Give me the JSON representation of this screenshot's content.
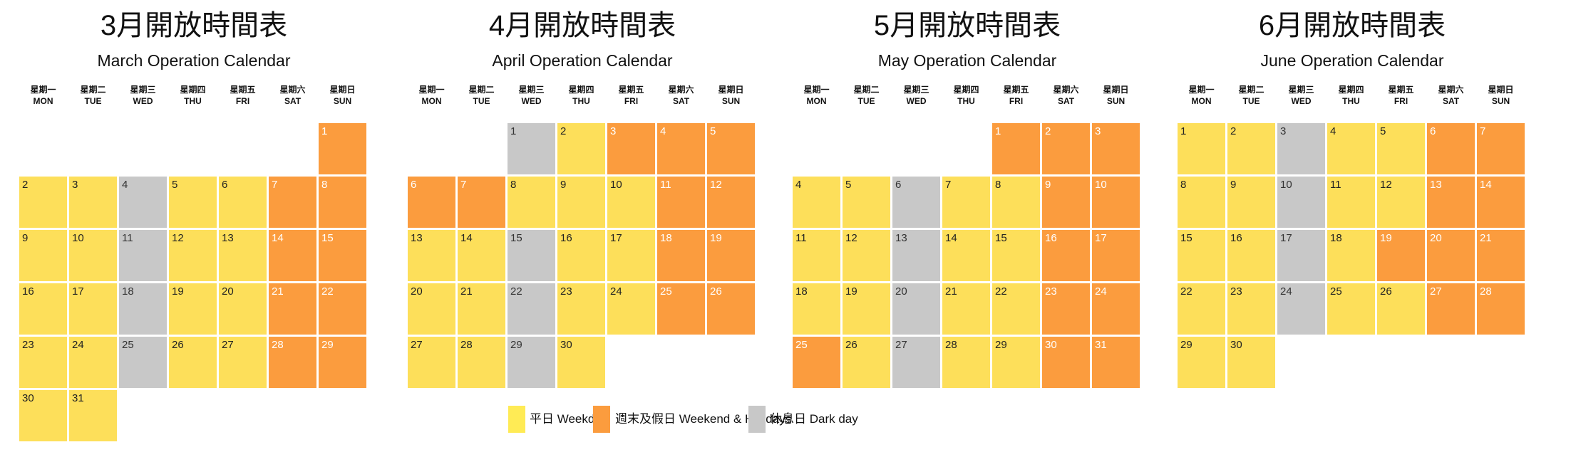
{
  "weekdays": [
    {
      "zh": "星期一",
      "en": "MON"
    },
    {
      "zh": "星期二",
      "en": "TUE"
    },
    {
      "zh": "星期三",
      "en": "WED"
    },
    {
      "zh": "星期四",
      "en": "THU"
    },
    {
      "zh": "星期五",
      "en": "FRI"
    },
    {
      "zh": "星期六",
      "en": "SAT"
    },
    {
      "zh": "星期日",
      "en": "SUN"
    }
  ],
  "colors": {
    "weekday": "#FDDF5A",
    "holiday": "#FB9C3E",
    "dark": "#C8C8C8",
    "legend_weekday": "#FFEB55"
  },
  "legend": {
    "weekday": "平日 Weekday",
    "holiday": "週末及假日 Weekend & Holidays",
    "dark": "休息日 Dark day"
  },
  "months": [
    {
      "title_zh": "3月開放時間表",
      "title_en": "March Operation Calendar",
      "offset": 6,
      "types": "hwwdwwhhwwdwwhhwwdwwhhwwdwwhhww"
    },
    {
      "title_zh": "4月開放時間表",
      "title_en": "April Operation Calendar",
      "offset": 2,
      "types": "dwhhhhhwwwhhwwdwwhhwwdwwhhwwdw"
    },
    {
      "title_zh": "5月開放時間表",
      "title_en": "May Operation Calendar",
      "offset": 4,
      "types": "hhhwwdwwhhwwdwwhhwwdwwhhhwdwwhh"
    },
    {
      "title_zh": "6月開放時間表",
      "title_en": "June Operation Calendar",
      "offset": 0,
      "types": "wwdwwhhwwdwwhhwwdwhhhwwdwwhhww"
    }
  ]
}
